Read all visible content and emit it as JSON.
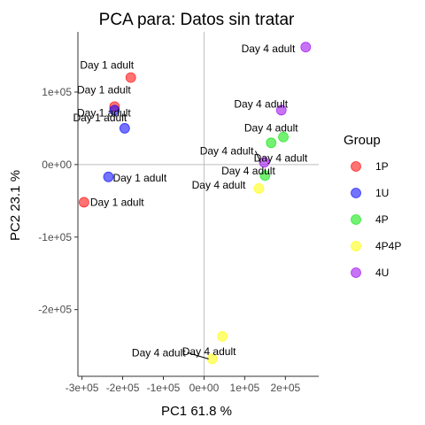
{
  "chart_data": {
    "type": "scatter",
    "title": "PCA para:  Datos sin tratar",
    "xlabel": "PC1 61.8 %",
    "ylabel": "PC2 23.1 %",
    "xlim": [
      -310000,
      282000
    ],
    "ylim": [
      -292000,
      183000
    ],
    "x_ticks": [
      {
        "value": -300000,
        "label": "-3e+05"
      },
      {
        "value": -200000,
        "label": "-2e+05"
      },
      {
        "value": -100000,
        "label": "-1e+05"
      },
      {
        "value": 0,
        "label": "0e+00"
      },
      {
        "value": 100000,
        "label": "1e+05"
      },
      {
        "value": 200000,
        "label": "2e+05"
      }
    ],
    "y_ticks": [
      {
        "value": 100000,
        "label": "1e+05"
      },
      {
        "value": 0,
        "label": "0e+00"
      },
      {
        "value": -100000,
        "label": "-1e+05"
      },
      {
        "value": -200000,
        "label": "-2e+05"
      }
    ],
    "grid": false,
    "reference_lines": {
      "x": 0,
      "y": 0,
      "color": "#bdbdbd"
    },
    "legend": {
      "title": "Group",
      "placement": "right",
      "entries": [
        {
          "name": "1P",
          "color": "#ff0000"
        },
        {
          "name": "1U",
          "color": "#0000ff"
        },
        {
          "name": "4P",
          "color": "#00e600"
        },
        {
          "name": "4P4P",
          "color": "#ffff00"
        },
        {
          "name": "4U",
          "color": "#9900ee"
        }
      ]
    },
    "series": [
      {
        "name": "1P",
        "color": "#ff0000",
        "points": [
          {
            "x": -180000,
            "y": 120000,
            "label": "Day 1 adult"
          },
          {
            "x": -220000,
            "y": 80000,
            "label": "Day 1 adult"
          },
          {
            "x": -295000,
            "y": -52000,
            "label": "Day 1 adult"
          }
        ]
      },
      {
        "name": "1U",
        "color": "#0000ff",
        "points": [
          {
            "x": -220000,
            "y": 75000,
            "label": "Day 1 adult"
          },
          {
            "x": -195000,
            "y": 50000,
            "label": "Day 1 adult"
          },
          {
            "x": -235000,
            "y": -17000,
            "label": "Day 1 adult"
          }
        ]
      },
      {
        "name": "4P",
        "color": "#00e600",
        "points": [
          {
            "x": 165000,
            "y": 30000,
            "label": "Day 4 adult"
          },
          {
            "x": 195000,
            "y": 38000,
            "label": "Day 4 adult"
          },
          {
            "x": 150000,
            "y": -15000,
            "label": "Day 4 adult"
          }
        ]
      },
      {
        "name": "4P4P",
        "color": "#ffff00",
        "points": [
          {
            "x": 45000,
            "y": -237000,
            "label": "Day 4 adult"
          },
          {
            "x": 20000,
            "y": -268000,
            "label": "Day 4 adult"
          },
          {
            "x": 135000,
            "y": -33000,
            "label": "Day 4 adult"
          }
        ]
      },
      {
        "name": "4U",
        "color": "#9900ee",
        "points": [
          {
            "x": 250000,
            "y": 162000,
            "label": "Day 4 adult"
          },
          {
            "x": 190000,
            "y": 75000,
            "label": "Day 4 adult"
          },
          {
            "x": 148000,
            "y": 3000,
            "label": "Day 4 adult"
          }
        ]
      }
    ]
  }
}
